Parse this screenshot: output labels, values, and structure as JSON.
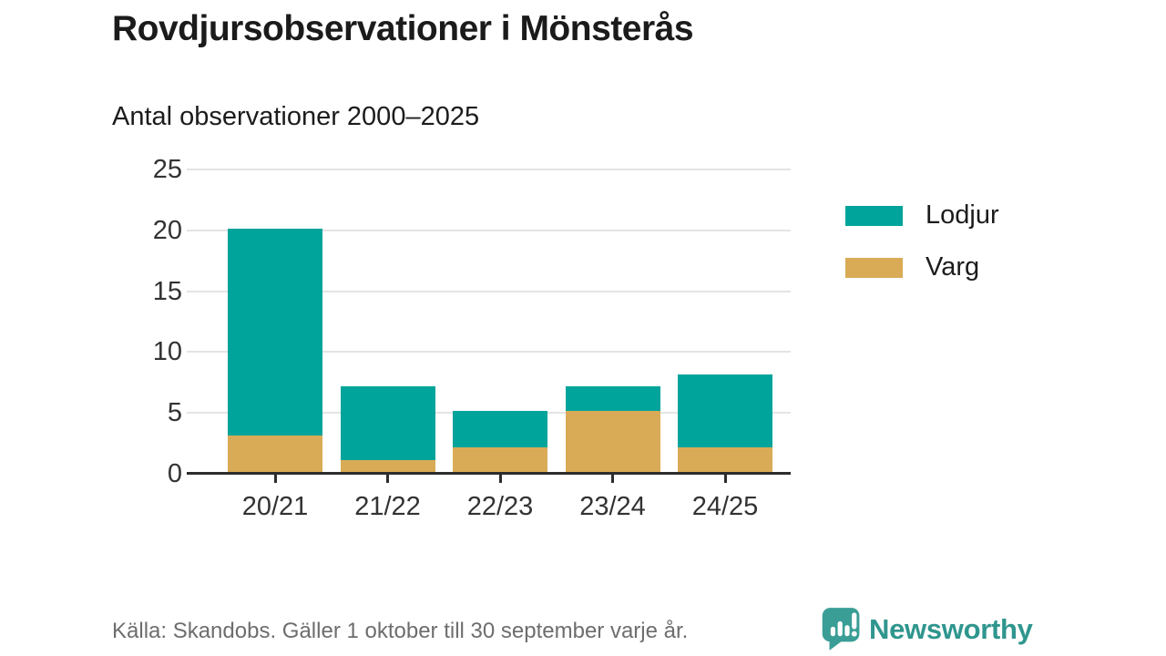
{
  "chart_data": {
    "type": "bar",
    "stacked": true,
    "title": "Rovdjursobservationer i Mönsterås",
    "subtitle": "Antal observationer 2000–2025",
    "categories": [
      "20/21",
      "21/22",
      "22/23",
      "23/24",
      "24/25"
    ],
    "series": [
      {
        "name": "Lodjur",
        "color": "#00a49b",
        "values": [
          17,
          6,
          3,
          2,
          6
        ]
      },
      {
        "name": "Varg",
        "color": "#d9ab57",
        "values": [
          3,
          1,
          2,
          5,
          2
        ]
      }
    ],
    "stack_order_bottom_to_top": [
      "Varg",
      "Lodjur"
    ],
    "totals": [
      20,
      7,
      5,
      7,
      8
    ],
    "ylim": [
      0,
      25
    ],
    "yticks": [
      0,
      5,
      10,
      15,
      20,
      25
    ],
    "grid": "horizontal",
    "legend_position": "right"
  },
  "footer": {
    "source": "Källa: Skandobs. Gäller 1 oktober till 30 september varje år.",
    "brand": "Newsworthy",
    "brand_color": "#2f968e",
    "brand_icon": "newsworthy-bar-chart-bubble-icon",
    "brand_icon_color": "#3a9e96"
  }
}
